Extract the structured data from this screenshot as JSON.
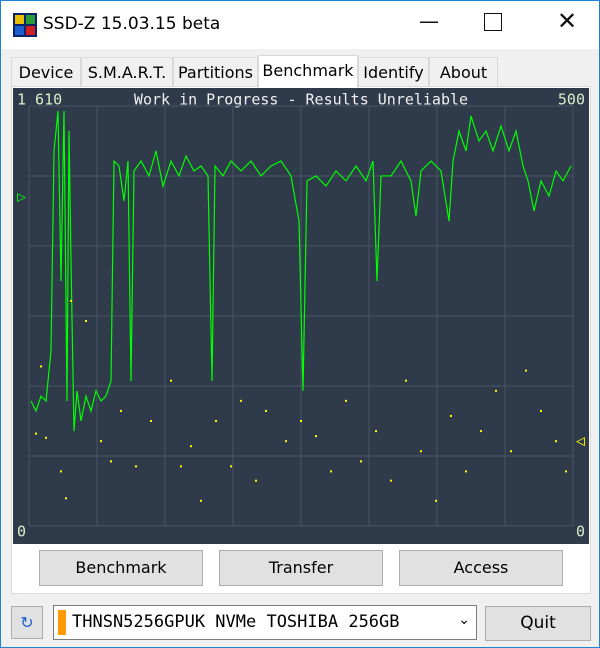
{
  "window": {
    "title": "SSD-Z 15.03.15 beta"
  },
  "tabs": [
    "Device",
    "S.M.A.R.T.",
    "Partitions",
    "Benchmark",
    "Identify",
    "About"
  ],
  "active_tab": 3,
  "chart_data": {
    "type": "line",
    "title": "Work in Progress - Results Unreliable",
    "xlim": [
      0,
      544
    ],
    "ylim": [
      0,
      1610
    ],
    "yticks": [
      0,
      {
        "value": 1610,
        "label": "1 610"
      }
    ],
    "y2lim": [
      0,
      500
    ],
    "y2ticks": [
      0,
      500
    ],
    "series": [
      {
        "type": "line",
        "color": "#00ff00",
        "x": [
          2,
          7,
          12,
          17,
          22,
          25,
          29,
          32,
          35,
          38,
          40,
          42,
          45,
          48,
          52,
          57,
          62,
          67,
          72,
          77,
          82,
          85,
          90,
          95,
          99,
          102,
          105,
          112,
          120,
          127,
          134,
          142,
          150,
          157,
          165,
          172,
          179,
          183,
          186,
          194,
          202,
          212,
          222,
          232,
          242,
          252,
          262,
          270,
          274,
          278,
          287,
          297,
          307,
          317,
          327,
          337,
          344,
          348,
          352,
          362,
          372,
          382,
          387,
          392,
          402,
          412,
          420,
          424,
          430,
          437,
          442,
          450,
          457,
          464,
          472,
          480,
          487,
          494,
          499,
          505,
          512,
          520,
          527,
          534,
          542
        ],
        "values": [
          479,
          441,
          498,
          479,
          671,
          1438,
          1591,
          939,
          1591,
          479,
          1514,
          1016,
          364,
          518,
          403,
          498,
          441,
          518,
          479,
          498,
          556,
          1399,
          1380,
          1246,
          1399,
          556,
          1361,
          1399,
          1342,
          1438,
          1303,
          1399,
          1342,
          1418,
          1361,
          1380,
          1342,
          556,
          1380,
          1342,
          1399,
          1361,
          1399,
          1342,
          1380,
          1399,
          1342,
          1169,
          518,
          1323,
          1342,
          1303,
          1361,
          1323,
          1380,
          1323,
          1399,
          939,
          1342,
          1342,
          1399,
          1323,
          1188,
          1361,
          1399,
          1361,
          1169,
          1399,
          1514,
          1438,
          1572,
          1476,
          1514,
          1438,
          1533,
          1438,
          1514,
          1380,
          1323,
          1208,
          1323,
          1265,
          1361,
          1323,
          1380
        ]
      },
      {
        "type": "scatter",
        "axis": "y2",
        "color": "#ffff00",
        "x": [
          12,
          7,
          17,
          32,
          37,
          42,
          57,
          72,
          82,
          92,
          107,
          122,
          142,
          152,
          162,
          172,
          187,
          202,
          212,
          227,
          237,
          257,
          272,
          287,
          302,
          317,
          332,
          347,
          362,
          377,
          392,
          407,
          422,
          437,
          452,
          467,
          482,
          497,
          512,
          527,
          537
        ],
        "values": [
          190,
          110,
          105,
          65,
          33,
          268,
          244,
          101,
          77,
          137,
          71,
          125,
          173,
          71,
          95,
          30,
          125,
          71,
          149,
          54,
          137,
          101,
          125,
          107,
          65,
          149,
          77,
          113,
          54,
          173,
          89,
          30,
          131,
          65,
          113,
          161,
          89,
          185,
          137,
          101,
          65
        ]
      }
    ]
  },
  "buttons": [
    "Benchmark",
    "Transfer",
    "Access"
  ],
  "drive": "THNSN5256GPUK NVMe TOSHIBA 256GB",
  "quit": "Quit"
}
